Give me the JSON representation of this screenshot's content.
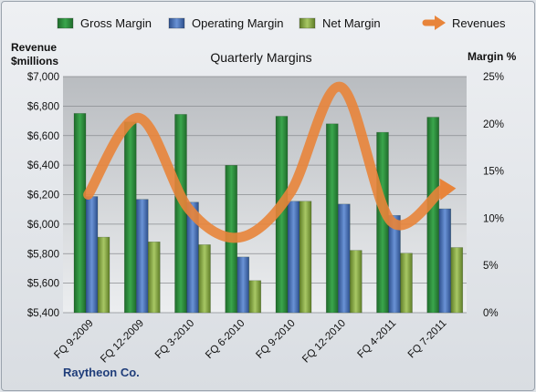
{
  "chart_data": {
    "type": "bar+line",
    "title": "Quarterly Margins",
    "company": "Raytheon Co.",
    "y_left_label": [
      "Revenue",
      "$millions"
    ],
    "y_right_label": "Margin %",
    "y_left_ticks": [
      "$5,400",
      "$5,600",
      "$5,800",
      "$6,000",
      "$6,200",
      "$6,400",
      "$6,600",
      "$6,800",
      "$7,000"
    ],
    "y_right_ticks": [
      "0%",
      "5%",
      "10%",
      "15%",
      "20%",
      "25%"
    ],
    "ylim_left": [
      5400,
      7000
    ],
    "ylim_right": [
      0,
      25
    ],
    "categories": [
      "FQ 9-2009",
      "FQ 12-2009",
      "FQ 3-2010",
      "FQ 6-2010",
      "FQ 9-2010",
      "FQ 12-2010",
      "FQ 4-2011",
      "FQ 7-2011"
    ],
    "series": [
      {
        "name": "Gross Margin",
        "axis": "right",
        "type": "bar",
        "color": "#2e8b3e",
        "values": [
          21.1,
          20.2,
          21.0,
          15.6,
          20.8,
          20.0,
          19.1,
          20.7
        ]
      },
      {
        "name": "Operating Margin",
        "axis": "right",
        "type": "bar",
        "color": "#4a73b8",
        "values": [
          12.3,
          12.0,
          11.7,
          5.9,
          11.8,
          11.5,
          10.3,
          11.0
        ]
      },
      {
        "name": "Net Margin",
        "axis": "right",
        "type": "bar",
        "color": "#8fb04a",
        "values": [
          8.0,
          7.5,
          7.2,
          3.4,
          11.8,
          6.6,
          6.3,
          6.9
        ]
      },
      {
        "name": "Revenues",
        "axis": "left",
        "type": "line",
        "color": "#e8843a",
        "values": [
          6200,
          6720,
          6100,
          5910,
          6210,
          6930,
          6020,
          6230
        ]
      }
    ],
    "grid": true,
    "legend_position": "top"
  }
}
